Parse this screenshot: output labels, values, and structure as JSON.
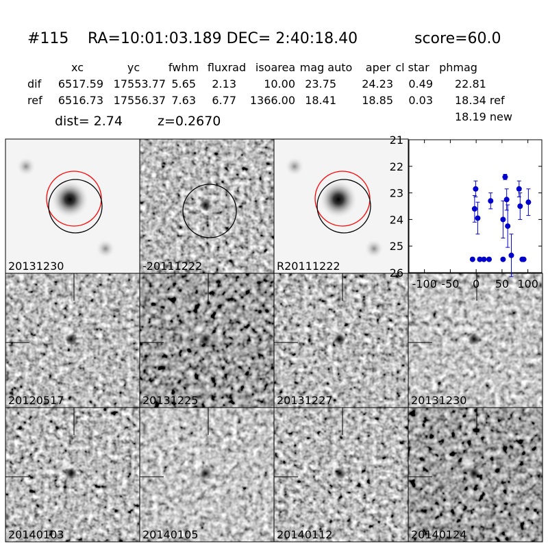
{
  "header": {
    "id": "#115",
    "coords": "RA=10:01:03.189 DEC= 2:40:18.40",
    "score": "score=60.0"
  },
  "table": {
    "columns": [
      "xc",
      "yc",
      "fwhm",
      "fluxrad",
      "isoarea",
      "mag auto",
      "aper",
      "cl star",
      "phmag"
    ],
    "rows": [
      [
        "dif",
        "6517.59",
        "17553.77",
        "5.65",
        "2.13",
        "10.00",
        "23.75",
        "24.23",
        "0.49",
        "22.81"
      ],
      [
        "ref",
        "6516.73",
        "17556.37",
        "7.63",
        "6.77",
        "1366.00",
        "18.41",
        "18.85",
        "0.03",
        "18.34 ref"
      ]
    ],
    "extra": "18.19 new",
    "dist": "dist=  2.74",
    "z": "z=0.2670"
  },
  "panels": [
    {
      "label": "20131230"
    },
    {
      "label": "-20111222"
    },
    {
      "label": "R20111222"
    },
    {
      "label": "20120517"
    },
    {
      "label": "20131225"
    },
    {
      "label": "20131227"
    },
    {
      "label": "20131230",
      "label_color": "#ff0000"
    },
    {
      "label": "20140103"
    },
    {
      "label": "20140105"
    },
    {
      "label": "20140112"
    },
    {
      "label": "20140124"
    }
  ],
  "chart_data": {
    "type": "errorbar",
    "color": "#0000cc",
    "x": [
      -7,
      -3,
      -1,
      3,
      7,
      15,
      25,
      28,
      52,
      52,
      56,
      59,
      61,
      68,
      83,
      85,
      89,
      92,
      101
    ],
    "values": [
      25.5,
      23.6,
      22.85,
      23.95,
      25.5,
      25.5,
      25.5,
      23.3,
      25.5,
      24.0,
      22.4,
      23.25,
      24.25,
      25.35,
      22.85,
      23.5,
      25.5,
      25.5,
      23.35
    ],
    "errors": [
      0,
      0.5,
      0.3,
      0.6,
      0,
      0,
      0,
      0.3,
      0,
      0.7,
      0.1,
      0.4,
      0.8,
      0.8,
      0.3,
      0.5,
      0,
      0,
      0.5
    ],
    "xlim": [
      -130,
      127
    ],
    "ylim": [
      26,
      21
    ],
    "xticks": [
      -100,
      -50,
      0,
      50,
      100
    ],
    "yticks": [
      21,
      22,
      23,
      24,
      25,
      26
    ]
  }
}
